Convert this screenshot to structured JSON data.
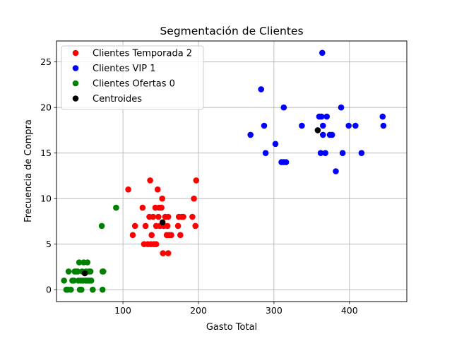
{
  "chart_data": {
    "type": "scatter",
    "title": "Segmentación de Clientes",
    "xlabel": "Gasto Total",
    "ylabel": "Frecuencia de Compra",
    "xlim": [
      12,
      476
    ],
    "ylim": [
      -1.3,
      27.3
    ],
    "xticks": [
      100,
      200,
      300,
      400
    ],
    "yticks": [
      0,
      5,
      10,
      15,
      20,
      25
    ],
    "grid": true,
    "legend_position": "top-left",
    "series": [
      {
        "name": "Clientes Temporada 2",
        "color": "#ff0000",
        "points": [
          [
            107,
            11
          ],
          [
            113,
            6
          ],
          [
            116,
            7
          ],
          [
            126,
            9
          ],
          [
            128,
            5
          ],
          [
            130,
            7
          ],
          [
            133,
            5
          ],
          [
            135,
            8
          ],
          [
            136,
            12
          ],
          [
            137,
            5
          ],
          [
            138,
            6
          ],
          [
            140,
            8
          ],
          [
            141,
            5
          ],
          [
            143,
            9
          ],
          [
            144,
            5
          ],
          [
            144,
            7
          ],
          [
            146,
            11
          ],
          [
            147,
            8
          ],
          [
            148,
            9
          ],
          [
            149,
            7
          ],
          [
            151,
            9
          ],
          [
            152,
            10
          ],
          [
            153,
            4
          ],
          [
            154,
            7
          ],
          [
            156,
            8
          ],
          [
            158,
            6
          ],
          [
            159,
            7
          ],
          [
            160,
            8
          ],
          [
            160,
            4
          ],
          [
            161,
            6
          ],
          [
            164,
            6
          ],
          [
            173,
            7
          ],
          [
            174,
            8
          ],
          [
            176,
            6
          ],
          [
            178,
            8
          ],
          [
            180,
            8
          ],
          [
            192,
            8
          ],
          [
            194,
            10
          ],
          [
            196,
            7
          ],
          [
            197,
            12
          ]
        ]
      },
      {
        "name": "Clientes VIP 1",
        "color": "#0000ff",
        "points": [
          [
            269,
            17
          ],
          [
            283,
            22
          ],
          [
            287,
            18
          ],
          [
            289,
            15
          ],
          [
            302,
            16
          ],
          [
            310,
            14
          ],
          [
            313,
            20
          ],
          [
            313,
            14
          ],
          [
            316,
            14
          ],
          [
            337,
            18
          ],
          [
            360,
            19
          ],
          [
            362,
            15
          ],
          [
            363,
            19
          ],
          [
            364,
            26
          ],
          [
            365,
            17
          ],
          [
            365,
            18
          ],
          [
            368,
            15
          ],
          [
            370,
            19
          ],
          [
            374,
            17
          ],
          [
            377,
            17
          ],
          [
            382,
            13
          ],
          [
            389,
            20
          ],
          [
            391,
            15
          ],
          [
            399,
            18
          ],
          [
            408,
            18
          ],
          [
            416,
            15
          ],
          [
            444,
            19
          ],
          [
            445,
            18
          ]
        ]
      },
      {
        "name": "Clientes Ofertas 0",
        "color": "#008000",
        "points": [
          [
            22,
            1
          ],
          [
            25,
            0
          ],
          [
            27,
            0
          ],
          [
            28,
            2
          ],
          [
            31,
            0
          ],
          [
            33,
            1
          ],
          [
            35,
            1
          ],
          [
            36,
            2
          ],
          [
            38,
            2
          ],
          [
            40,
            2
          ],
          [
            41,
            1
          ],
          [
            42,
            3
          ],
          [
            43,
            0
          ],
          [
            44,
            1
          ],
          [
            45,
            0
          ],
          [
            46,
            2
          ],
          [
            47,
            1
          ],
          [
            48,
            3
          ],
          [
            50,
            1
          ],
          [
            51,
            2
          ],
          [
            52,
            1
          ],
          [
            53,
            3
          ],
          [
            54,
            1
          ],
          [
            55,
            2
          ],
          [
            56,
            1
          ],
          [
            57,
            2
          ],
          [
            58,
            1
          ],
          [
            60,
            0
          ],
          [
            72,
            7
          ],
          [
            73,
            0
          ],
          [
            73,
            2
          ],
          [
            74,
            2
          ],
          [
            91,
            9
          ]
        ]
      },
      {
        "name": "Centroides",
        "color": "#000000",
        "points": [
          [
            49.5,
            1.8
          ],
          [
            152.5,
            7.4
          ],
          [
            358,
            17.5
          ]
        ]
      }
    ]
  }
}
